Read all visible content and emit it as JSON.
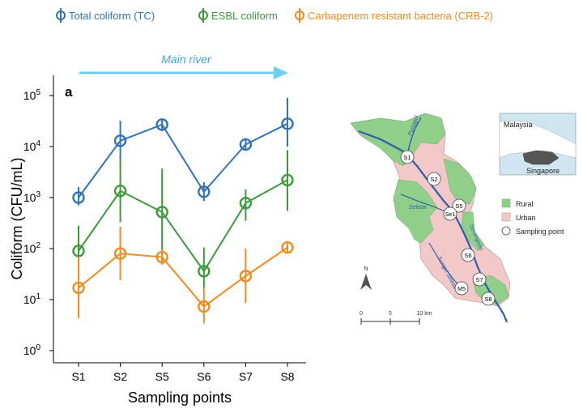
{
  "chart_data": [
    {
      "type": "line",
      "panel_label": "a",
      "arrow_label": "Main river",
      "categories": [
        "S1",
        "S2",
        "S5",
        "S6",
        "S7",
        "S8"
      ],
      "xlabel": "Sampling points",
      "ylabel": "Coliform (CFU/mL)",
      "yscale": "log",
      "ylim": [
        1,
        100000
      ],
      "yticks": [
        {
          "value": 1,
          "base": "10",
          "exp": "0"
        },
        {
          "value": 10,
          "base": "10",
          "exp": "1"
        },
        {
          "value": 100,
          "base": "10",
          "exp": "2"
        },
        {
          "value": 1000,
          "base": "10",
          "exp": "3"
        },
        {
          "value": 10000,
          "base": "10",
          "exp": "4"
        },
        {
          "value": 100000,
          "base": "10",
          "exp": "5"
        }
      ],
      "grid": false,
      "legend_position": "top",
      "series": [
        {
          "name": "Total coliform (TC)",
          "color": "#2f74b5",
          "values": [
            1000,
            13000,
            27000,
            1300,
            11000,
            28000
          ],
          "err_low": [
            700,
            5000,
            20000,
            850,
            9000,
            10000
          ],
          "err_high": [
            1600,
            32000,
            34000,
            2000,
            14000,
            90000
          ]
        },
        {
          "name": "ESBL coliform",
          "color": "#3a9b3a",
          "values": [
            90,
            1350,
            520,
            36,
            780,
            2200
          ],
          "err_low": [
            25,
            330,
            50,
            17,
            350,
            550
          ],
          "err_high": [
            280,
            5500,
            3700,
            105,
            1450,
            8500
          ]
        },
        {
          "name": "Carbapenem resistant bacteria (CRB-2)",
          "color": "#f28a1e",
          "values": [
            17,
            80,
            68,
            7.3,
            29,
            105
          ],
          "err_low": [
            4.3,
            24,
            48,
            3.4,
            8.5,
            85
          ],
          "err_high": [
            70,
            270,
            97,
            17,
            100,
            125
          ]
        }
      ]
    },
    {
      "type": "map",
      "legend": [
        {
          "label": "Rural",
          "color": "#8fcf8a"
        },
        {
          "label": "Urban",
          "color": "#f2c8c8"
        },
        {
          "label": "Sampling point",
          "color": "#ffffff"
        }
      ],
      "sampling_points": [
        "S1",
        "S2",
        "S5",
        "Se1",
        "S6",
        "S7",
        "M5",
        "S8"
      ],
      "river_labels": [
        "Punggol",
        "Serangoon",
        "Seletar",
        "Sungei Seletar"
      ],
      "inset_labels": {
        "country_1": "Malaysia",
        "country_2": "Singapore"
      },
      "north_label": "N",
      "scale_labels": [
        "0",
        "5",
        "10 km"
      ]
    }
  ]
}
